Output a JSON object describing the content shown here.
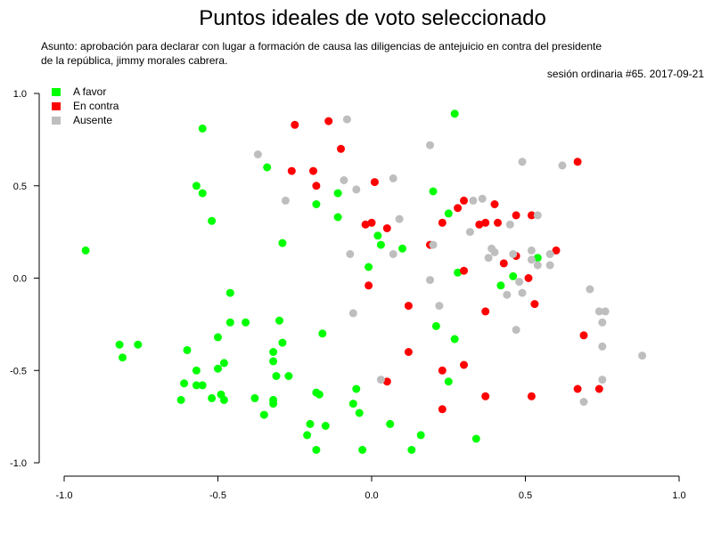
{
  "chart_data": {
    "type": "scatter",
    "title": "Puntos ideales de voto seleccionado",
    "subtitle_lines": [
      "Asunto: aprobación para declarar con lugar a formación de causa las diligencias de antejuicio en contra del presidente",
      "de la república, jimmy morales cabrera."
    ],
    "session_label": "sesión ordinaria #65. 2017-09-21",
    "xlim": [
      -1.0,
      1.0
    ],
    "ylim": [
      -1.0,
      1.0
    ],
    "x_ticks": [
      "-1.0",
      "-0.5",
      "0.0",
      "0.5",
      "1.0"
    ],
    "y_ticks": [
      "-1.0",
      "-0.5",
      "0.0",
      "0.5",
      "1.0"
    ],
    "grid": false,
    "legend_position": "top-left",
    "series": [
      {
        "name": "A favor",
        "color": "#00ff00",
        "points": [
          [
            -0.93,
            0.15
          ],
          [
            -0.55,
            0.81
          ],
          [
            -0.57,
            0.5
          ],
          [
            -0.55,
            0.46
          ],
          [
            -0.52,
            0.31
          ],
          [
            -0.34,
            0.6
          ],
          [
            -0.29,
            0.19
          ],
          [
            -0.18,
            0.4
          ],
          [
            -0.11,
            0.46
          ],
          [
            -0.11,
            0.33
          ],
          [
            0.27,
            0.89
          ],
          [
            0.2,
            0.47
          ],
          [
            0.25,
            0.35
          ],
          [
            0.02,
            0.23
          ],
          [
            0.03,
            0.18
          ],
          [
            0.1,
            0.16
          ],
          [
            -0.01,
            0.06
          ],
          [
            0.28,
            0.03
          ],
          [
            0.42,
            -0.04
          ],
          [
            0.46,
            0.01
          ],
          [
            0.54,
            0.11
          ],
          [
            -0.46,
            -0.08
          ],
          [
            -0.46,
            -0.24
          ],
          [
            -0.41,
            -0.24
          ],
          [
            -0.3,
            -0.23
          ],
          [
            -0.5,
            -0.32
          ],
          [
            -0.16,
            -0.3
          ],
          [
            -0.29,
            -0.35
          ],
          [
            -0.32,
            -0.4
          ],
          [
            -0.32,
            -0.45
          ],
          [
            -0.82,
            -0.36
          ],
          [
            -0.76,
            -0.36
          ],
          [
            -0.81,
            -0.43
          ],
          [
            -0.6,
            -0.39
          ],
          [
            -0.48,
            -0.46
          ],
          [
            -0.5,
            -0.49
          ],
          [
            -0.57,
            -0.5
          ],
          [
            -0.61,
            -0.57
          ],
          [
            -0.57,
            -0.58
          ],
          [
            -0.55,
            -0.58
          ],
          [
            -0.27,
            -0.53
          ],
          [
            -0.31,
            -0.53
          ],
          [
            -0.62,
            -0.66
          ],
          [
            -0.52,
            -0.65
          ],
          [
            -0.49,
            -0.63
          ],
          [
            -0.48,
            -0.66
          ],
          [
            -0.38,
            -0.65
          ],
          [
            -0.32,
            -0.66
          ],
          [
            -0.32,
            -0.68
          ],
          [
            -0.35,
            -0.74
          ],
          [
            -0.18,
            -0.62
          ],
          [
            -0.17,
            -0.63
          ],
          [
            -0.05,
            -0.6
          ],
          [
            -0.06,
            -0.68
          ],
          [
            -0.04,
            -0.73
          ],
          [
            -0.2,
            -0.79
          ],
          [
            -0.15,
            -0.8
          ],
          [
            0.06,
            -0.79
          ],
          [
            -0.21,
            -0.85
          ],
          [
            0.16,
            -0.85
          ],
          [
            0.34,
            -0.87
          ],
          [
            -0.18,
            -0.93
          ],
          [
            -0.03,
            -0.93
          ],
          [
            0.13,
            -0.93
          ],
          [
            0.27,
            -0.33
          ],
          [
            0.21,
            -0.26
          ],
          [
            0.25,
            -0.56
          ]
        ]
      },
      {
        "name": "En contra",
        "color": "#ff0000",
        "points": [
          [
            -0.25,
            0.83
          ],
          [
            -0.14,
            0.85
          ],
          [
            -0.1,
            0.7
          ],
          [
            -0.26,
            0.58
          ],
          [
            -0.19,
            0.58
          ],
          [
            -0.18,
            0.5
          ],
          [
            0.01,
            0.52
          ],
          [
            0.67,
            0.63
          ],
          [
            0.28,
            0.38
          ],
          [
            0.3,
            0.42
          ],
          [
            0.4,
            0.4
          ],
          [
            0.47,
            0.34
          ],
          [
            0.52,
            0.34
          ],
          [
            0.23,
            0.3
          ],
          [
            0.35,
            0.29
          ],
          [
            0.37,
            0.3
          ],
          [
            0.41,
            0.3
          ],
          [
            -0.02,
            0.29
          ],
          [
            0.0,
            0.3
          ],
          [
            0.05,
            0.27
          ],
          [
            0.19,
            0.18
          ],
          [
            0.6,
            0.15
          ],
          [
            0.43,
            0.08
          ],
          [
            0.47,
            0.12
          ],
          [
            0.3,
            0.04
          ],
          [
            0.51,
            0.0
          ],
          [
            -0.01,
            -0.04
          ],
          [
            0.12,
            -0.15
          ],
          [
            0.53,
            -0.14
          ],
          [
            0.37,
            -0.18
          ],
          [
            0.69,
            -0.31
          ],
          [
            0.12,
            -0.4
          ],
          [
            0.3,
            -0.47
          ],
          [
            0.23,
            -0.5
          ],
          [
            0.05,
            -0.56
          ],
          [
            0.37,
            -0.64
          ],
          [
            0.52,
            -0.64
          ],
          [
            0.67,
            -0.6
          ],
          [
            0.74,
            -0.6
          ],
          [
            0.23,
            -0.71
          ]
        ]
      },
      {
        "name": "Ausente",
        "color": "#bebebe",
        "points": [
          [
            -0.08,
            0.86
          ],
          [
            0.19,
            0.72
          ],
          [
            -0.37,
            0.67
          ],
          [
            0.49,
            0.63
          ],
          [
            0.62,
            0.61
          ],
          [
            -0.09,
            0.53
          ],
          [
            0.07,
            0.54
          ],
          [
            -0.05,
            0.48
          ],
          [
            -0.28,
            0.42
          ],
          [
            0.33,
            0.42
          ],
          [
            0.36,
            0.43
          ],
          [
            0.54,
            0.34
          ],
          [
            0.09,
            0.32
          ],
          [
            0.45,
            0.29
          ],
          [
            0.32,
            0.25
          ],
          [
            0.2,
            0.18
          ],
          [
            0.39,
            0.16
          ],
          [
            -0.07,
            0.13
          ],
          [
            0.07,
            0.13
          ],
          [
            0.38,
            0.11
          ],
          [
            0.4,
            0.14
          ],
          [
            0.46,
            0.13
          ],
          [
            0.52,
            0.15
          ],
          [
            0.58,
            0.13
          ],
          [
            0.52,
            0.1
          ],
          [
            0.54,
            0.07
          ],
          [
            0.58,
            0.07
          ],
          [
            0.48,
            -0.02
          ],
          [
            0.19,
            -0.01
          ],
          [
            0.44,
            -0.09
          ],
          [
            0.49,
            -0.08
          ],
          [
            0.71,
            -0.06
          ],
          [
            0.22,
            -0.15
          ],
          [
            0.74,
            -0.18
          ],
          [
            0.76,
            -0.18
          ],
          [
            -0.06,
            -0.19
          ],
          [
            0.75,
            -0.24
          ],
          [
            0.47,
            -0.28
          ],
          [
            0.75,
            -0.37
          ],
          [
            0.88,
            -0.42
          ],
          [
            0.03,
            -0.55
          ],
          [
            0.75,
            -0.55
          ],
          [
            0.69,
            -0.67
          ]
        ]
      }
    ]
  }
}
